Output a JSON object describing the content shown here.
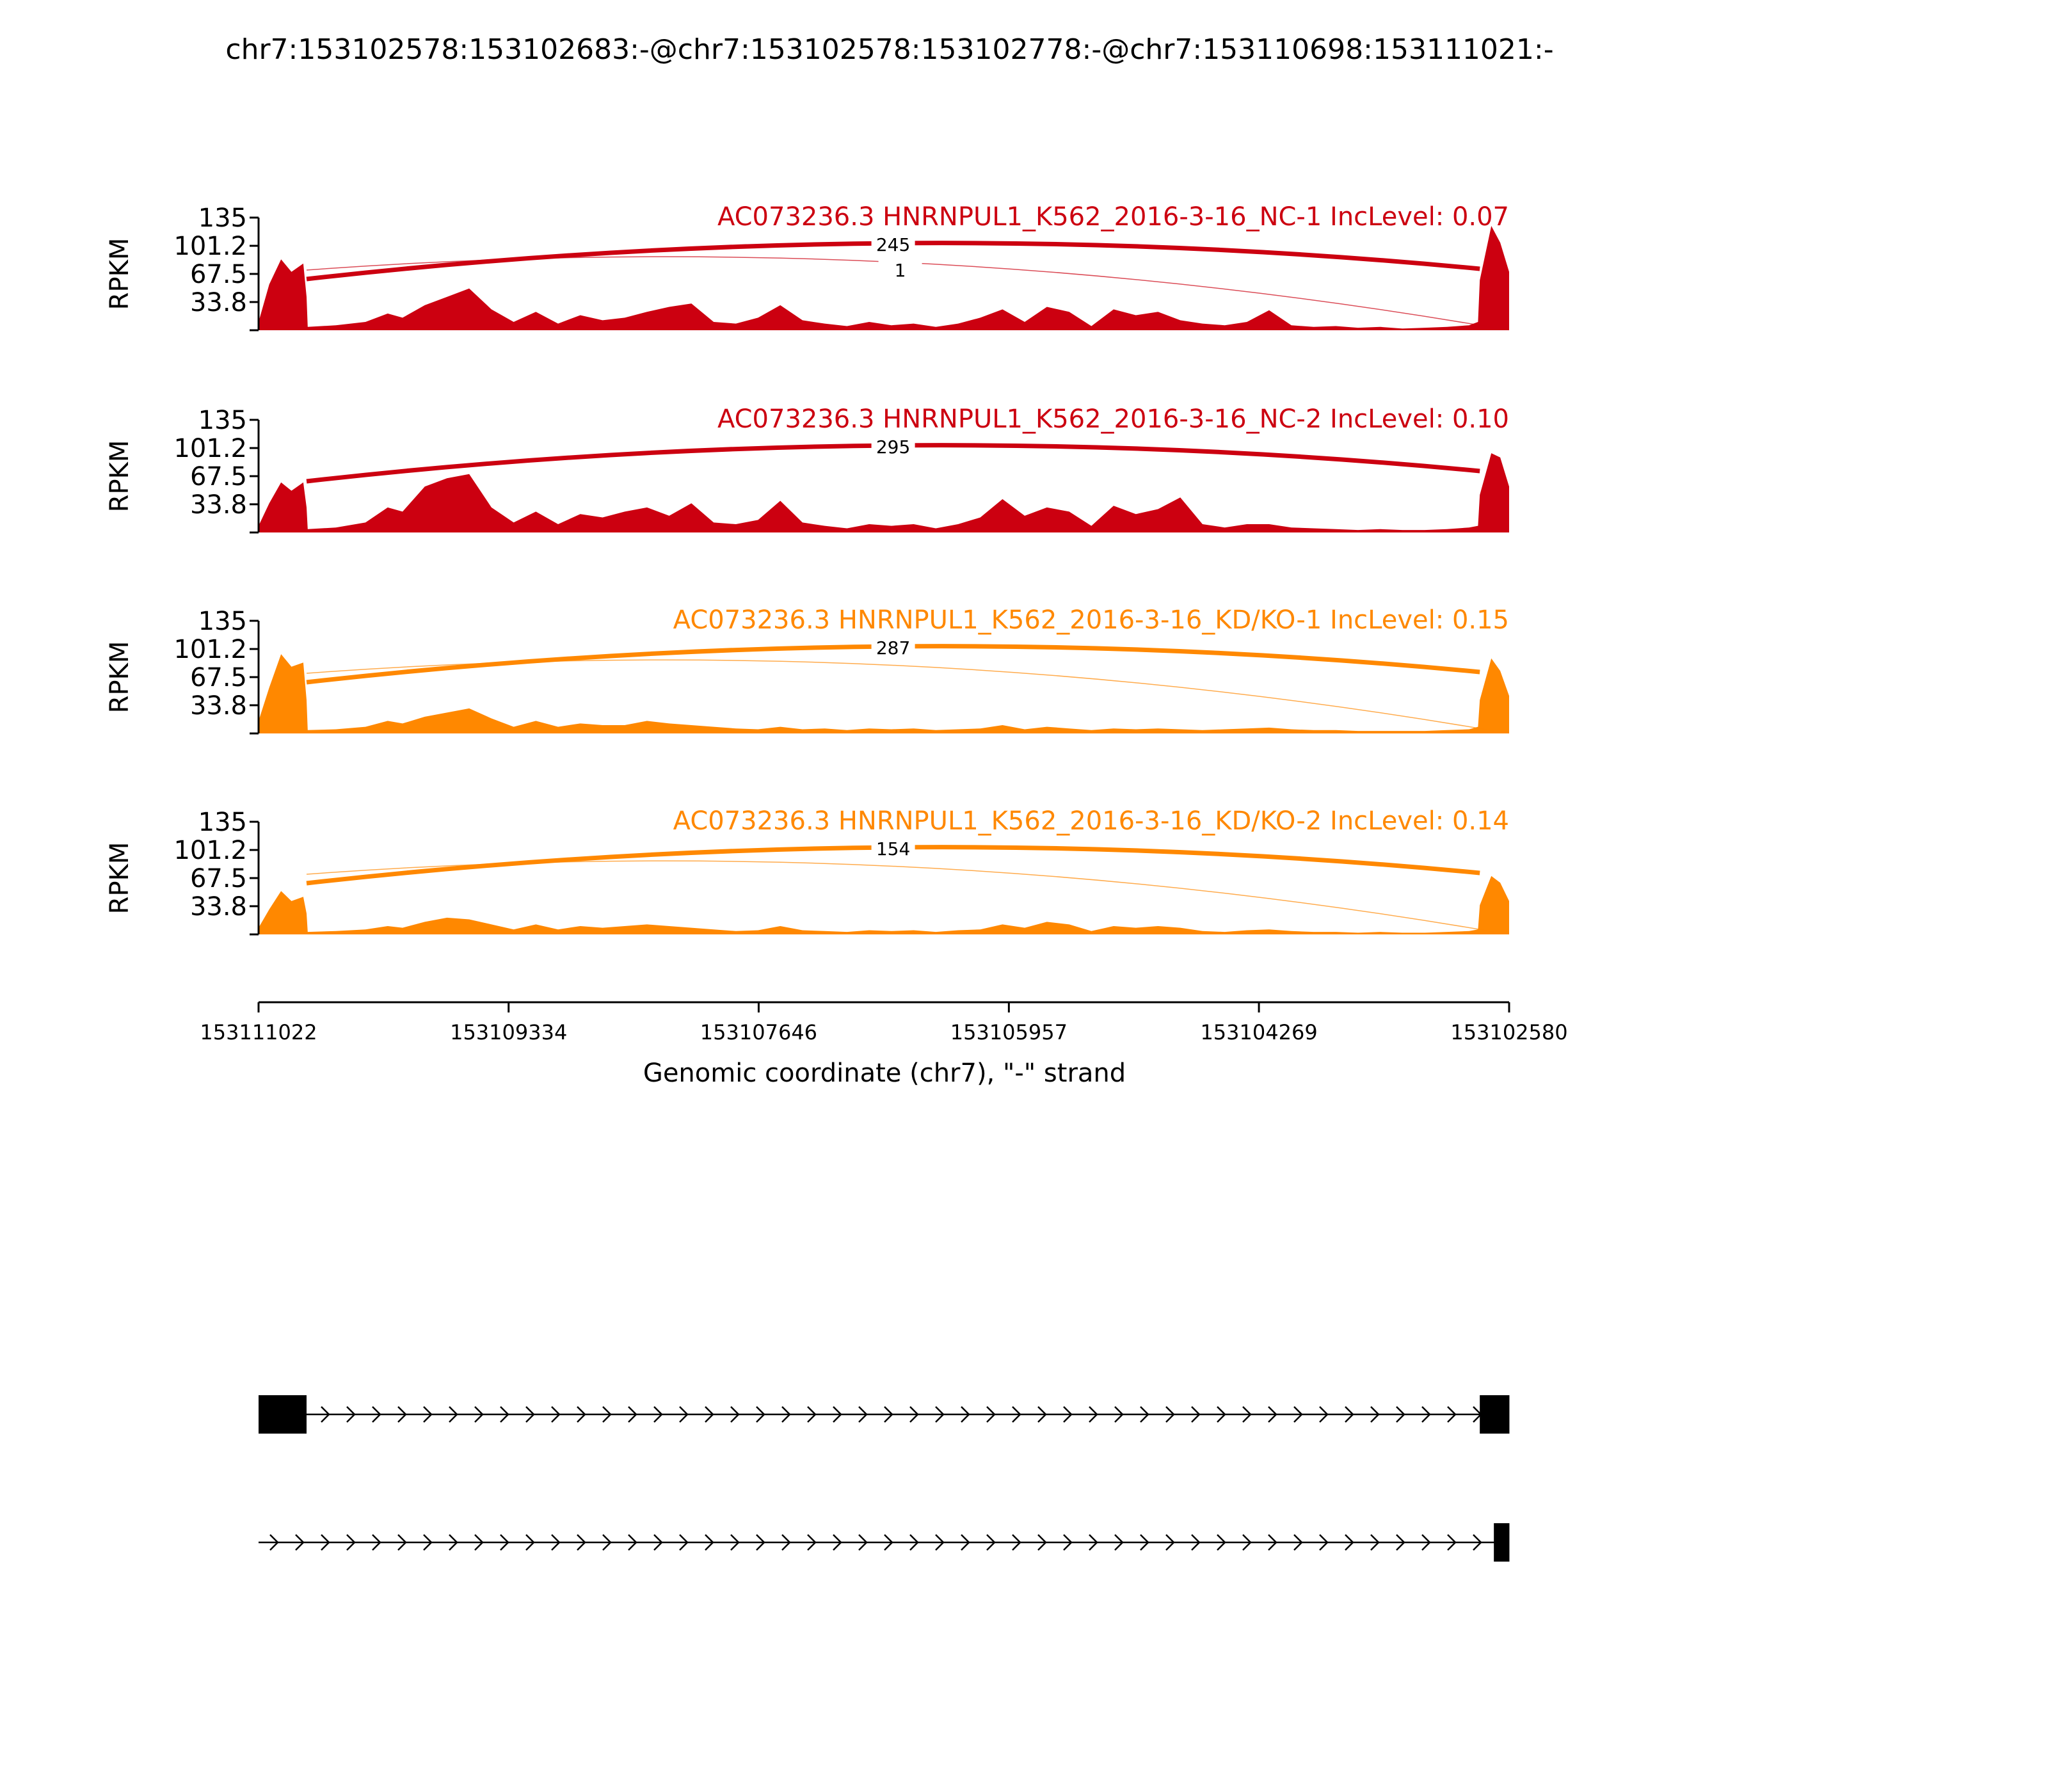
{
  "chart_data": {
    "type": "area",
    "title": "chr7:153102578:153102683:-@chr7:153102578:153102778:-@chr7:153110698:153111021:-",
    "xlabel": "Genomic coordinate (chr7), \"-\" strand",
    "ylabel": "RPKM",
    "xlim": [
      153111022,
      153102580
    ],
    "x_ticks": [
      "153111022",
      "153109334",
      "153107646",
      "153105957",
      "153104269",
      "153102580"
    ],
    "ylim": [
      0,
      135
    ],
    "y_ticks": [
      "135",
      "101.2",
      "67.5",
      "33.8"
    ],
    "grid": false,
    "panels": [
      {
        "label": "AC073236.3 HNRNPUL1_K562_2016-3-16_NC-1 IncLevel: 0.07",
        "color": "#CC0010",
        "coverage_x": [
          153111022,
          153110950,
          153110870,
          153110800,
          153110720,
          153110698,
          153110690,
          153110500,
          153110300,
          153110150,
          153110050,
          153109900,
          153109750,
          153109600,
          153109450,
          153109300,
          153109150,
          153109000,
          153108850,
          153108700,
          153108550,
          153108400,
          153108250,
          153108100,
          153107950,
          153107800,
          153107650,
          153107500,
          153107350,
          153107200,
          153107050,
          153106900,
          153106750,
          153106600,
          153106450,
          153106300,
          153106150,
          153106000,
          153105850,
          153105700,
          153105550,
          153105400,
          153105250,
          153105100,
          153104950,
          153104800,
          153104650,
          153104500,
          153104350,
          153104200,
          153104050,
          153103900,
          153103750,
          153103600,
          153103450,
          153103300,
          153103150,
          153103000,
          153102850,
          153102790,
          153102778,
          153102700,
          153102640,
          153102580
        ],
        "coverage_y": [
          10,
          55,
          85,
          70,
          80,
          40,
          4,
          6,
          10,
          20,
          15,
          30,
          40,
          50,
          25,
          10,
          22,
          8,
          18,
          12,
          15,
          22,
          28,
          32,
          10,
          8,
          15,
          30,
          12,
          8,
          5,
          10,
          6,
          8,
          4,
          8,
          15,
          25,
          10,
          28,
          22,
          5,
          25,
          18,
          22,
          12,
          8,
          6,
          10,
          24,
          6,
          4,
          5,
          3,
          4,
          2,
          3,
          4,
          6,
          10,
          60,
          125,
          105,
          70
        ],
        "junctions": [
          {
            "count": "245",
            "from": 153110698,
            "to": 153102778
          },
          {
            "count": "1",
            "from": 153110698,
            "to": 153102683
          }
        ]
      },
      {
        "label": "AC073236.3 HNRNPUL1_K562_2016-3-16_NC-2 IncLevel: 0.10",
        "color": "#CC0010",
        "coverage_x": [
          153111022,
          153110950,
          153110870,
          153110800,
          153110720,
          153110698,
          153110690,
          153110500,
          153110300,
          153110150,
          153110050,
          153109900,
          153109750,
          153109600,
          153109450,
          153109300,
          153109150,
          153109000,
          153108850,
          153108700,
          153108550,
          153108400,
          153108250,
          153108100,
          153107950,
          153107800,
          153107650,
          153107500,
          153107350,
          153107200,
          153107050,
          153106900,
          153106750,
          153106600,
          153106450,
          153106300,
          153106150,
          153106000,
          153105850,
          153105700,
          153105550,
          153105400,
          153105250,
          153105100,
          153104950,
          153104800,
          153104650,
          153104500,
          153104350,
          153104200,
          153104050,
          153103900,
          153103750,
          153103600,
          153103450,
          153103300,
          153103150,
          153103000,
          153102850,
          153102790,
          153102778,
          153102700,
          153102640,
          153102580
        ],
        "coverage_y": [
          8,
          35,
          60,
          50,
          60,
          30,
          4,
          6,
          12,
          30,
          25,
          55,
          65,
          70,
          30,
          12,
          25,
          10,
          22,
          18,
          25,
          30,
          20,
          35,
          12,
          10,
          15,
          38,
          12,
          8,
          5,
          10,
          8,
          10,
          5,
          10,
          18,
          40,
          20,
          30,
          25,
          8,
          32,
          22,
          28,
          42,
          10,
          6,
          10,
          10,
          6,
          5,
          4,
          3,
          4,
          3,
          3,
          4,
          6,
          8,
          45,
          95,
          90,
          55
        ],
        "junctions": [
          {
            "count": "295",
            "from": 153110698,
            "to": 153102778
          }
        ]
      },
      {
        "label": "AC073236.3 HNRNPUL1_K562_2016-3-16_KD/KO-1 IncLevel: 0.15",
        "color": "#FF8800",
        "coverage_x": [
          153111022,
          153110950,
          153110870,
          153110800,
          153110720,
          153110698,
          153110690,
          153110500,
          153110300,
          153110150,
          153110050,
          153109900,
          153109750,
          153109600,
          153109450,
          153109300,
          153109150,
          153109000,
          153108850,
          153108700,
          153108550,
          153108400,
          153108250,
          153108100,
          153107950,
          153107800,
          153107650,
          153107500,
          153107350,
          153107200,
          153107050,
          153106900,
          153106750,
          153106600,
          153106450,
          153106300,
          153106150,
          153106000,
          153105850,
          153105700,
          153105550,
          153105400,
          153105250,
          153105100,
          153104950,
          153104800,
          153104650,
          153104500,
          153104350,
          153104200,
          153104050,
          153103900,
          153103750,
          153103600,
          153103450,
          153103300,
          153103150,
          153103000,
          153102850,
          153102790,
          153102778,
          153102700,
          153102640,
          153102580
        ],
        "coverage_y": [
          15,
          55,
          95,
          80,
          85,
          40,
          4,
          5,
          8,
          15,
          12,
          20,
          25,
          30,
          18,
          8,
          15,
          8,
          12,
          10,
          10,
          15,
          12,
          10,
          8,
          6,
          5,
          8,
          5,
          6,
          4,
          6,
          5,
          6,
          4,
          5,
          6,
          10,
          5,
          8,
          6,
          4,
          6,
          5,
          6,
          5,
          4,
          5,
          6,
          7,
          5,
          4,
          4,
          3,
          3,
          3,
          3,
          4,
          5,
          8,
          40,
          90,
          75,
          45
        ],
        "junctions": [
          {
            "count": "287",
            "from": 153110698,
            "to": 153102778
          },
          {
            "count": "",
            "from": 153110698,
            "to": 153102683
          }
        ]
      },
      {
        "label": "AC073236.3 HNRNPUL1_K562_2016-3-16_KD/KO-2 IncLevel: 0.14",
        "color": "#FF8800",
        "coverage_x": [
          153111022,
          153110950,
          153110870,
          153110800,
          153110720,
          153110698,
          153110690,
          153110500,
          153110300,
          153110150,
          153110050,
          153109900,
          153109750,
          153109600,
          153109450,
          153109300,
          153109150,
          153109000,
          153108850,
          153108700,
          153108550,
          153108400,
          153108250,
          153108100,
          153107950,
          153107800,
          153107650,
          153107500,
          153107350,
          153107200,
          153107050,
          153106900,
          153106750,
          153106600,
          153106450,
          153106300,
          153106150,
          153106000,
          153105850,
          153105700,
          153105550,
          153105400,
          153105250,
          153105100,
          153104950,
          153104800,
          153104650,
          153104500,
          153104350,
          153104200,
          153104050,
          153103900,
          153103750,
          153103600,
          153103450,
          153103300,
          153103150,
          153103000,
          153102850,
          153102790,
          153102778,
          153102700,
          153102640,
          153102580
        ],
        "coverage_y": [
          8,
          30,
          52,
          40,
          45,
          25,
          3,
          4,
          6,
          10,
          8,
          15,
          20,
          18,
          12,
          6,
          12,
          6,
          10,
          8,
          10,
          12,
          10,
          8,
          6,
          4,
          5,
          10,
          5,
          4,
          3,
          5,
          4,
          5,
          3,
          5,
          6,
          12,
          8,
          15,
          12,
          4,
          10,
          8,
          10,
          8,
          4,
          3,
          5,
          6,
          4,
          3,
          3,
          2,
          3,
          2,
          2,
          3,
          4,
          6,
          35,
          70,
          62,
          40
        ],
        "junctions": [
          {
            "count": "154",
            "from": 153110698,
            "to": 153102778
          },
          {
            "count": "",
            "from": 153110698,
            "to": 153102683
          }
        ]
      }
    ],
    "isoforms": [
      {
        "exons": [
          [
            153111022,
            153110698
          ],
          [
            153102778,
            153102578
          ]
        ],
        "strand": "-"
      },
      {
        "exons": [
          [
            153102683,
            153102578
          ]
        ],
        "strand": "-"
      }
    ]
  }
}
